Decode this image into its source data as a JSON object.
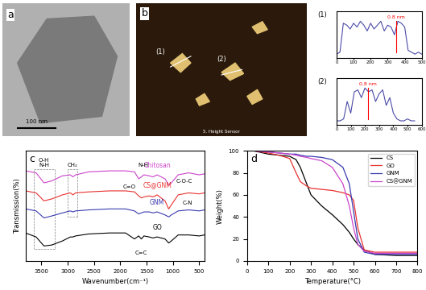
{
  "chart_data": [
    {
      "type": "image",
      "panel": "a",
      "scale_bar": "100 nm"
    },
    {
      "type": "image",
      "panel": "b",
      "labels": [
        "(1)",
        "(2)"
      ],
      "caption": "5. Height Sensor"
    },
    {
      "type": "line",
      "title": "(1)",
      "color": "#4b4ba8",
      "x": [
        0,
        20,
        40,
        60,
        80,
        100,
        120,
        140,
        160,
        180,
        200,
        220,
        240,
        260,
        280,
        300,
        320,
        340,
        360,
        380,
        400,
        420,
        440,
        460,
        480,
        500
      ],
      "values": [
        0.1,
        0.15,
        0.9,
        0.85,
        0.75,
        0.9,
        0.8,
        0.95,
        0.85,
        0.7,
        0.9,
        0.75,
        0.85,
        0.95,
        0.7,
        0.85,
        0.8,
        0.6,
        0.95,
        0.9,
        0.8,
        0.2,
        0.15,
        0.1,
        0.15,
        0.1
      ],
      "xlim": [
        0,
        500
      ],
      "xticks": [
        0,
        100,
        200,
        300,
        400,
        500
      ],
      "ylim": [
        0,
        1.2
      ],
      "tick_labels": "x",
      "annotations": [
        "0.8 nm"
      ]
    },
    {
      "type": "line",
      "title": "(2)",
      "color": "#4b4ba8",
      "x": [
        0,
        25,
        50,
        75,
        100,
        125,
        150,
        175,
        200,
        225,
        250,
        275,
        300,
        325,
        350,
        375,
        400,
        425,
        450,
        475,
        500,
        525,
        550
      ],
      "values": [
        0.1,
        0.1,
        0.15,
        0.6,
        0.3,
        0.85,
        0.9,
        0.7,
        0.95,
        0.85,
        0.9,
        0.6,
        0.8,
        0.9,
        0.5,
        0.7,
        0.3,
        0.15,
        0.1,
        0.1,
        0.15,
        0.1,
        0.1
      ],
      "xlim": [
        0,
        600
      ],
      "xticks": [
        0,
        100,
        200,
        300,
        400,
        500,
        600
      ],
      "ylim": [
        0,
        1.2
      ],
      "tick_labels": "x",
      "annotations": [
        "0.8 nm"
      ]
    },
    {
      "type": "line",
      "panel": "c",
      "x_label": "Wavenumber(cm⁻¹)",
      "y_label": "Transmission(%)",
      "x": [
        3800,
        3600,
        3450,
        3300,
        3100,
        2950,
        2900,
        2850,
        2600,
        2200,
        1900,
        1730,
        1650,
        1600,
        1550,
        1450,
        1380,
        1300,
        1150,
        1080,
        1030,
        900,
        700,
        500,
        400
      ],
      "series": [
        {
          "name": "Chitosan",
          "color": "#cc44cc",
          "values": [
            90,
            88,
            78,
            80,
            85,
            86,
            84,
            86,
            89,
            90,
            90,
            89,
            82,
            84,
            86,
            85,
            84,
            86,
            82,
            76,
            78,
            86,
            88,
            86,
            87
          ]
        },
        {
          "name": "CS@GNM",
          "color": "#e8312f",
          "values": [
            70,
            68,
            60,
            62,
            66,
            68,
            66,
            68,
            69,
            70,
            70,
            69,
            65,
            63,
            64,
            65,
            64,
            66,
            60,
            52,
            56,
            66,
            68,
            67,
            68
          ]
        },
        {
          "name": "GNM",
          "color": "#3a3ab0",
          "values": [
            52,
            50,
            43,
            45,
            48,
            50,
            49,
            50,
            51,
            52,
            52,
            50,
            47,
            48,
            49,
            49,
            48,
            49,
            46,
            44,
            46,
            50,
            51,
            50,
            51
          ]
        },
        {
          "name": "GO",
          "color": "#000000",
          "values": [
            28,
            24,
            15,
            16,
            20,
            24,
            24,
            25,
            27,
            28,
            28,
            22,
            25,
            22,
            25,
            24,
            23,
            24,
            22,
            18,
            20,
            26,
            26,
            25,
            26
          ]
        }
      ],
      "xlim": [
        3800,
        400
      ],
      "xticks": [
        3500,
        3000,
        2500,
        2000,
        1500,
        1000,
        500
      ],
      "ylim": [
        0,
        110
      ],
      "tick_labels": "x",
      "annotations": [
        "O-H\nN-H",
        "CH₂",
        "N-H",
        "C=O",
        "C-O-C",
        "C-N",
        "C=C"
      ]
    },
    {
      "type": "line",
      "panel": "d",
      "x_label": "Temperature(°C)",
      "y_label": "Weight(%)",
      "x": [
        30,
        100,
        150,
        200,
        230,
        250,
        280,
        300,
        350,
        400,
        450,
        480,
        500,
        520,
        550,
        600,
        700,
        800
      ],
      "series": [
        {
          "name": "CS",
          "color": "#000000",
          "values": [
            100,
            97,
            96,
            95,
            92,
            85,
            70,
            60,
            50,
            42,
            33,
            26,
            20,
            15,
            10,
            6,
            5,
            5
          ]
        },
        {
          "name": "GO",
          "color": "#e8312f",
          "values": [
            100,
            98,
            96,
            93,
            80,
            72,
            68,
            66,
            65,
            64,
            62,
            60,
            55,
            30,
            10,
            8,
            8,
            8
          ]
        },
        {
          "name": "GNM",
          "color": "#3a3ab0",
          "values": [
            100,
            99,
            98,
            97,
            97,
            96,
            95,
            95,
            94,
            92,
            85,
            70,
            45,
            20,
            8,
            6,
            6,
            6
          ]
        },
        {
          "name": "CS@GNM",
          "color": "#cc44cc",
          "values": [
            100,
            99,
            98,
            97,
            96,
            95,
            94,
            93,
            91,
            85,
            70,
            50,
            30,
            15,
            9,
            7,
            7,
            7
          ]
        }
      ],
      "xlim": [
        0,
        800
      ],
      "xticks": [
        0,
        100,
        200,
        300,
        400,
        500,
        600,
        700,
        800
      ],
      "ylim": [
        0,
        100
      ],
      "yticks": [
        0,
        20,
        40,
        60,
        80,
        100
      ],
      "legend": "upper right"
    }
  ]
}
